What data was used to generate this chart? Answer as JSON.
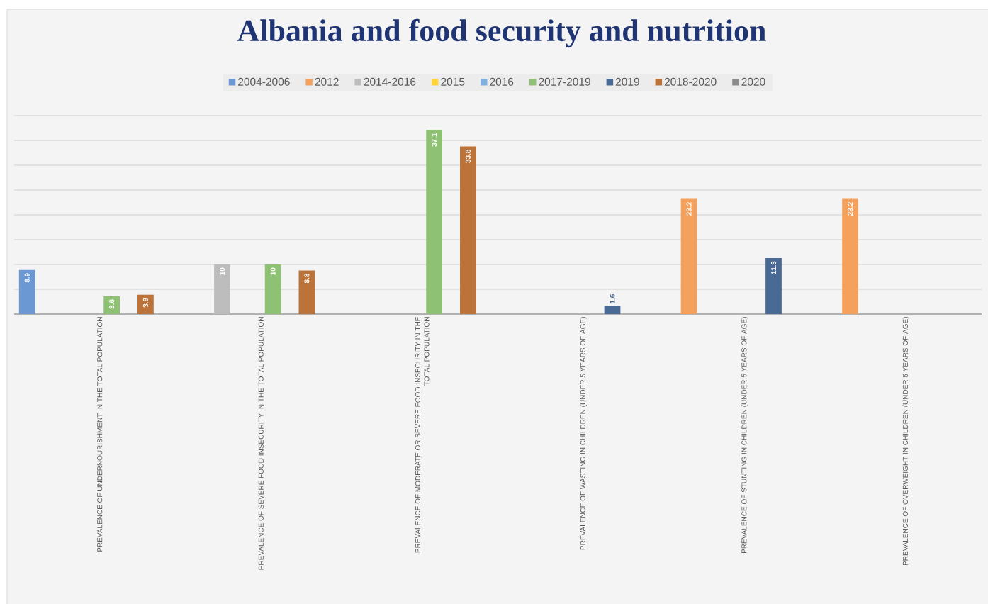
{
  "chart_data": {
    "type": "bar",
    "title": "Albania and food security and nutrition",
    "categories": [
      "PREVALENCE OF UNDERNOURISHMENT IN THE TOTAL POPULATION",
      "PREVALENCE OF SEVERE FOOD INSECURITY IN THE TOTAL POPULATION",
      "PREVALENCE OF MODERATE OR SEVERE FOOD INSECURITY IN THE TOTAL POPULATION",
      "PREVALENCE OF WASTING IN CHILDREN (UNDER 5 YEARS OF AGE)",
      "PREVALENCE OF STUNTING IN CHILDREN (UNDER 5 YEARS OF AGE)",
      "PREVALENCE OF OVERWEIGHT IN CHILDREN (UNDER 5 YEARS OF AGE)"
    ],
    "series": [
      {
        "name": "2004-2006",
        "color": "#6b97d3",
        "values": [
          8.9,
          null,
          null,
          null,
          null,
          null
        ]
      },
      {
        "name": "2012",
        "color": "#f4a15d",
        "values": [
          null,
          null,
          null,
          null,
          23.2,
          23.2
        ]
      },
      {
        "name": "2014-2016",
        "color": "#bdbdbd",
        "values": [
          null,
          10,
          null,
          null,
          null,
          null
        ]
      },
      {
        "name": "2015",
        "color": "#ffd43b",
        "values": [
          null,
          null,
          null,
          null,
          null,
          null
        ]
      },
      {
        "name": "2016",
        "color": "#7fb1e0",
        "values": [
          null,
          null,
          null,
          null,
          null,
          null
        ]
      },
      {
        "name": "2017-2019",
        "color": "#8fc174",
        "values": [
          3.6,
          10,
          37.1,
          null,
          null,
          null
        ]
      },
      {
        "name": "2019",
        "color": "#4a6a96",
        "values": [
          null,
          null,
          null,
          1.6,
          11.3,
          null
        ]
      },
      {
        "name": "2018-2020",
        "color": "#bb7339",
        "values": [
          3.9,
          8.8,
          33.8,
          null,
          null,
          null
        ]
      },
      {
        "name": "2020",
        "color": "#8c8c8c",
        "values": [
          null,
          null,
          null,
          null,
          null,
          null
        ]
      }
    ],
    "ylim": [
      0,
      40
    ],
    "yticks": [
      {
        "value": 0,
        "label": null
      },
      {
        "value": 5,
        "label": null
      },
      {
        "value": 10,
        "label": null
      },
      {
        "value": 15,
        "label": null
      },
      {
        "value": 20,
        "label": null
      },
      {
        "value": 25,
        "label": null
      },
      {
        "value": 30,
        "label": null
      },
      {
        "value": 35,
        "label": null
      },
      {
        "value": 40,
        "label": null
      }
    ],
    "grid": "y",
    "legend": "top",
    "tick_labels": "x",
    "data_labels": true
  }
}
